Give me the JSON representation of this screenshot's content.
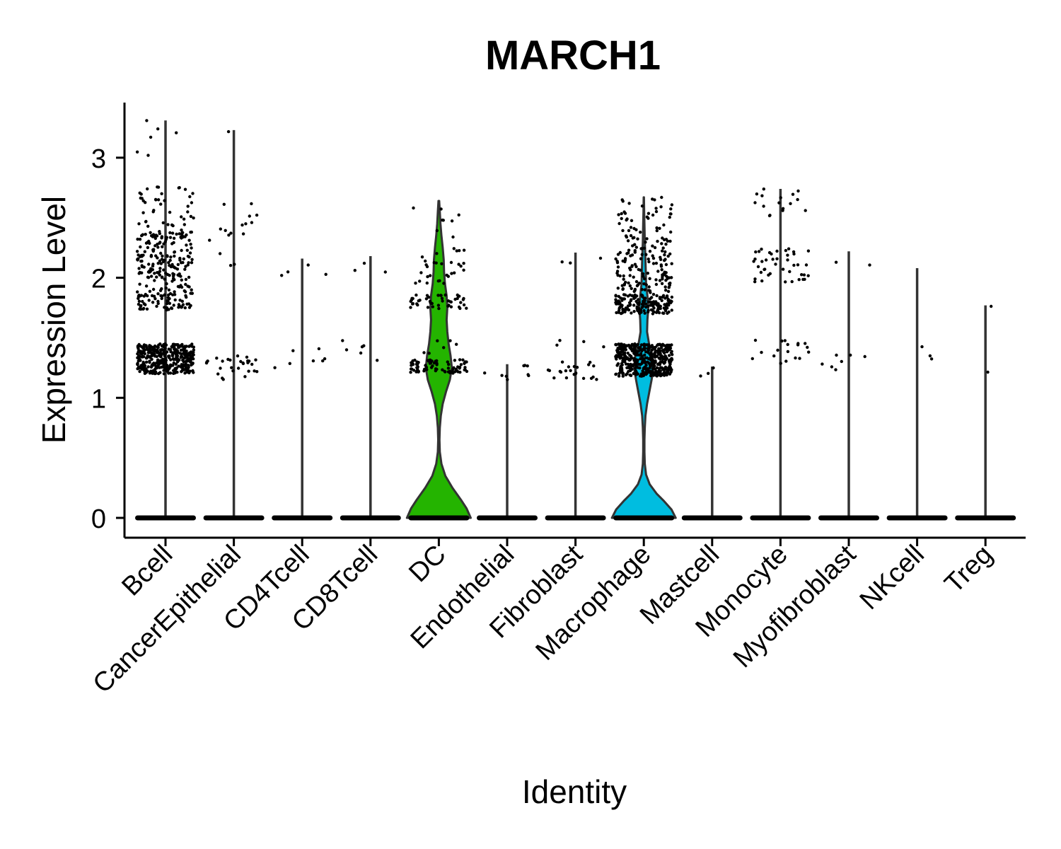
{
  "chart_data": {
    "type": "violin",
    "title": "MARCH1",
    "xlabel": "Identity",
    "ylabel": "Expression Level",
    "ylim": [
      -0.17,
      3.48
    ],
    "yticks": [
      0,
      1,
      2,
      3
    ],
    "legend": "none",
    "jitter_points": true,
    "categories": [
      "Bcell",
      "CancerEpithelial",
      "CD4Tcell",
      "CD8Tcell",
      "DC",
      "Endothelial",
      "Fibroblast",
      "Macrophage",
      "Mastcell",
      "Monocyte",
      "Myofibroblast",
      "NKcell",
      "Treg"
    ],
    "max_values": [
      3.31,
      3.23,
      2.16,
      2.18,
      2.64,
      1.28,
      2.21,
      2.67,
      1.26,
      2.74,
      2.22,
      2.08,
      1.77
    ],
    "colors": {
      "DC": "#24b400",
      "Macrophage": "#00bde0"
    },
    "violin_outline_color": "#333333",
    "point_color": "#000000",
    "highlighted_violins": [
      {
        "name": "DC",
        "density": [
          [
            0.0,
            0.98
          ],
          [
            0.08,
            0.85
          ],
          [
            0.15,
            0.68
          ],
          [
            0.25,
            0.42
          ],
          [
            0.35,
            0.2
          ],
          [
            0.45,
            0.08
          ],
          [
            0.55,
            0.03
          ],
          [
            0.65,
            0.02
          ],
          [
            0.75,
            0.03
          ],
          [
            0.85,
            0.06
          ],
          [
            0.95,
            0.12
          ],
          [
            1.05,
            0.22
          ],
          [
            1.15,
            0.34
          ],
          [
            1.25,
            0.4
          ],
          [
            1.35,
            0.36
          ],
          [
            1.45,
            0.3
          ],
          [
            1.55,
            0.26
          ],
          [
            1.65,
            0.24
          ],
          [
            1.75,
            0.26
          ],
          [
            1.85,
            0.24
          ],
          [
            1.95,
            0.19
          ],
          [
            2.05,
            0.16
          ],
          [
            2.15,
            0.15
          ],
          [
            2.25,
            0.12
          ],
          [
            2.35,
            0.08
          ],
          [
            2.45,
            0.05
          ],
          [
            2.55,
            0.03
          ],
          [
            2.64,
            0.01
          ]
        ]
      },
      {
        "name": "Macrophage",
        "density": [
          [
            0.0,
            0.98
          ],
          [
            0.07,
            0.85
          ],
          [
            0.14,
            0.62
          ],
          [
            0.2,
            0.4
          ],
          [
            0.28,
            0.18
          ],
          [
            0.36,
            0.07
          ],
          [
            0.45,
            0.03
          ],
          [
            0.55,
            0.02
          ],
          [
            0.65,
            0.02
          ],
          [
            0.75,
            0.03
          ],
          [
            0.85,
            0.05
          ],
          [
            0.95,
            0.1
          ],
          [
            1.05,
            0.17
          ],
          [
            1.15,
            0.24
          ],
          [
            1.25,
            0.3
          ],
          [
            1.35,
            0.26
          ],
          [
            1.45,
            0.16
          ],
          [
            1.55,
            0.1
          ],
          [
            1.65,
            0.11
          ],
          [
            1.75,
            0.14
          ],
          [
            1.85,
            0.11
          ],
          [
            1.95,
            0.07
          ],
          [
            2.05,
            0.06
          ],
          [
            2.15,
            0.05
          ],
          [
            2.3,
            0.03
          ],
          [
            2.45,
            0.02
          ],
          [
            2.55,
            0.01
          ],
          [
            2.67,
            0.005
          ]
        ]
      }
    ],
    "point_bands": [
      {
        "cat": 0,
        "lo": 1.2,
        "hi": 1.45,
        "n": 380
      },
      {
        "cat": 0,
        "lo": 1.73,
        "hi": 2.4,
        "n": 260
      },
      {
        "cat": 0,
        "lo": 2.4,
        "hi": 2.76,
        "n": 40
      },
      {
        "cat": 0,
        "lo": 2.8,
        "hi": 3.31,
        "n": 6
      },
      {
        "cat": 1,
        "lo": 1.15,
        "hi": 1.35,
        "n": 28
      },
      {
        "cat": 1,
        "lo": 2.05,
        "hi": 2.62,
        "n": 16
      },
      {
        "cat": 1,
        "lo": 3.2,
        "hi": 3.23,
        "n": 1
      },
      {
        "cat": 2,
        "lo": 1.25,
        "hi": 1.45,
        "n": 7
      },
      {
        "cat": 2,
        "lo": 1.95,
        "hi": 2.16,
        "n": 4
      },
      {
        "cat": 3,
        "lo": 1.25,
        "hi": 1.48,
        "n": 6
      },
      {
        "cat": 3,
        "lo": 2.02,
        "hi": 2.18,
        "n": 3
      },
      {
        "cat": 4,
        "lo": 1.2,
        "hi": 1.32,
        "n": 80
      },
      {
        "cat": 4,
        "lo": 1.74,
        "hi": 1.86,
        "n": 48
      },
      {
        "cat": 4,
        "lo": 1.95,
        "hi": 2.25,
        "n": 30
      },
      {
        "cat": 4,
        "lo": 2.3,
        "hi": 2.64,
        "n": 8
      },
      {
        "cat": 4,
        "lo": 1.35,
        "hi": 1.5,
        "n": 6
      },
      {
        "cat": 5,
        "lo": 1.15,
        "hi": 1.28,
        "n": 9
      },
      {
        "cat": 6,
        "lo": 1.15,
        "hi": 1.3,
        "n": 22
      },
      {
        "cat": 6,
        "lo": 1.38,
        "hi": 1.48,
        "n": 4
      },
      {
        "cat": 6,
        "lo": 2.1,
        "hi": 2.21,
        "n": 3
      },
      {
        "cat": 7,
        "lo": 1.18,
        "hi": 1.45,
        "n": 420
      },
      {
        "cat": 7,
        "lo": 1.7,
        "hi": 1.86,
        "n": 160
      },
      {
        "cat": 7,
        "lo": 1.86,
        "hi": 2.35,
        "n": 140
      },
      {
        "cat": 7,
        "lo": 2.35,
        "hi": 2.67,
        "n": 40
      },
      {
        "cat": 8,
        "lo": 1.18,
        "hi": 1.26,
        "n": 3
      },
      {
        "cat": 9,
        "lo": 1.27,
        "hi": 1.48,
        "n": 18
      },
      {
        "cat": 9,
        "lo": 1.95,
        "hi": 2.25,
        "n": 42
      },
      {
        "cat": 9,
        "lo": 2.5,
        "hi": 2.74,
        "n": 16
      },
      {
        "cat": 10,
        "lo": 1.18,
        "hi": 1.36,
        "n": 7
      },
      {
        "cat": 10,
        "lo": 1.95,
        "hi": 2.22,
        "n": 2
      },
      {
        "cat": 11,
        "lo": 1.25,
        "hi": 1.45,
        "n": 3
      },
      {
        "cat": 12,
        "lo": 1.2,
        "hi": 1.22,
        "n": 1
      },
      {
        "cat": 12,
        "lo": 1.74,
        "hi": 1.77,
        "n": 1
      }
    ]
  }
}
